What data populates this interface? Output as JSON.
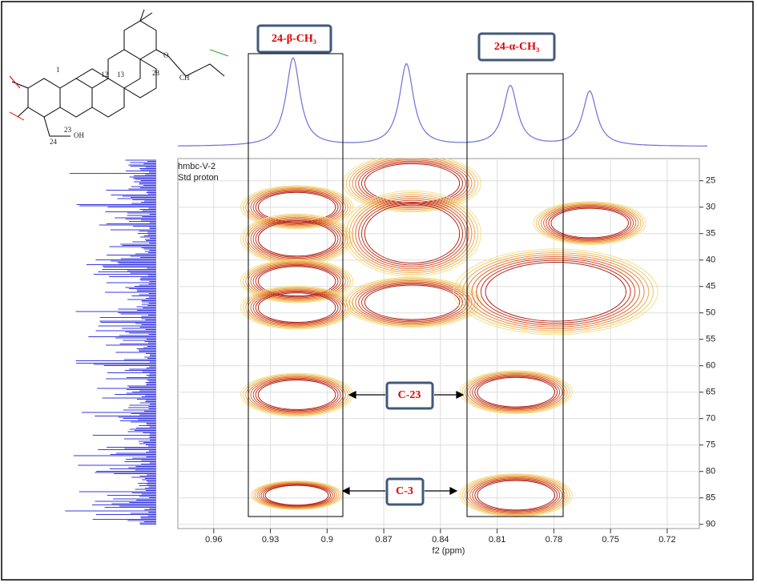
{
  "chart_data": {
    "type": "contour",
    "dataset_labels": [
      "hmbc-V-2",
      "Std proton"
    ],
    "xlabel": "f2 (ppm)",
    "xlim": [
      0.979,
      0.703
    ],
    "ylim": [
      20.8,
      90.8
    ],
    "xticks": [
      0.96,
      0.93,
      0.9,
      0.87,
      0.84,
      0.81,
      0.78,
      0.75,
      0.72
    ],
    "yticks": [
      25,
      30,
      35,
      40,
      45,
      50,
      55,
      60,
      65,
      70,
      75,
      80,
      85,
      90
    ],
    "grid": true,
    "peaks": [
      {
        "x": 0.916,
        "y": 30,
        "rx": 0.022,
        "ry": 3
      },
      {
        "x": 0.916,
        "y": 36,
        "rx": 0.022,
        "ry": 3.5
      },
      {
        "x": 0.916,
        "y": 44,
        "rx": 0.022,
        "ry": 3
      },
      {
        "x": 0.916,
        "y": 49,
        "rx": 0.022,
        "ry": 3
      },
      {
        "x": 0.855,
        "y": 25.5,
        "rx": 0.027,
        "ry": 4
      },
      {
        "x": 0.855,
        "y": 35,
        "rx": 0.027,
        "ry": 6
      },
      {
        "x": 0.855,
        "y": 48,
        "rx": 0.027,
        "ry": 3.5
      },
      {
        "x": 0.916,
        "y": 65.5,
        "rx": 0.022,
        "ry": 3
      },
      {
        "x": 0.8,
        "y": 65,
        "rx": 0.022,
        "ry": 3
      },
      {
        "x": 0.916,
        "y": 84.5,
        "rx": 0.018,
        "ry": 2
      },
      {
        "x": 0.8,
        "y": 84.5,
        "rx": 0.022,
        "ry": 3
      },
      {
        "x": 0.761,
        "y": 33,
        "rx": 0.022,
        "ry": 3
      },
      {
        "x": 0.779,
        "y": 46,
        "rx": 0.04,
        "ry": 6
      }
    ],
    "top_trace": {
      "peaks": [
        0.918,
        0.858,
        0.803,
        0.761
      ],
      "heights": [
        1,
        0.93,
        0.68,
        0.62
      ],
      "color": "#6f6fd8"
    },
    "left_trace_color": "#3a3ae0",
    "annotations": [
      "24-β-CH₃",
      "24-α-CH₃",
      "C-23",
      "C-3"
    ],
    "structure_labels": [
      "12",
      "13",
      "1",
      "28",
      "24",
      "23",
      "OH",
      "CH",
      "O"
    ]
  }
}
